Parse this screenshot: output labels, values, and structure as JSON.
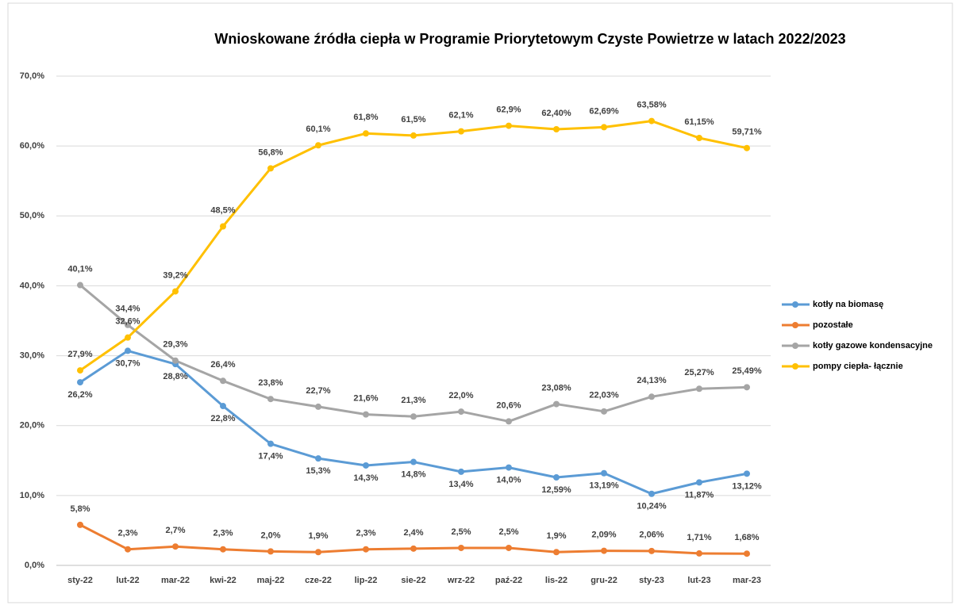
{
  "chart_data": {
    "type": "line",
    "title": "Wnioskowane źródła ciepła w Programie Priorytetowym Czyste Powietrze w latach 2022/2023",
    "categories": [
      "sty-22",
      "lut-22",
      "mar-22",
      "kwi-22",
      "maj-22",
      "cze-22",
      "lip-22",
      "sie-22",
      "wrz-22",
      "paź-22",
      "lis-22",
      "gru-22",
      "sty-23",
      "lut-23",
      "mar-23"
    ],
    "series": [
      {
        "name": "kotły na biomasę",
        "color": "#5b9bd5",
        "values": [
          26.2,
          30.7,
          28.8,
          22.8,
          17.4,
          15.3,
          14.3,
          14.8,
          13.4,
          14.0,
          12.59,
          13.19,
          10.24,
          11.87,
          13.12
        ],
        "value_labels": [
          "26,2%",
          "30,7%",
          "28,8%",
          "22,8%",
          "17,4%",
          "15,3%",
          "14,3%",
          "14,8%",
          "13,4%",
          "14,0%",
          "12,59%",
          "13,19%",
          "10,24%",
          "11,87%",
          "13,12%"
        ]
      },
      {
        "name": "pozostałe",
        "color": "#ed7d31",
        "values": [
          5.8,
          2.3,
          2.7,
          2.3,
          2.0,
          1.9,
          2.3,
          2.4,
          2.5,
          2.5,
          1.9,
          2.09,
          2.06,
          1.71,
          1.68
        ],
        "value_labels": [
          "5,8%",
          "2,3%",
          "2,7%",
          "2,3%",
          "2,0%",
          "1,9%",
          "2,3%",
          "2,4%",
          "2,5%",
          "2,5%",
          "1,9%",
          "2,09%",
          "2,06%",
          "1,71%",
          "1,68%"
        ]
      },
      {
        "name": "kotły gazowe kondensacyjne",
        "color": "#a5a5a5",
        "values": [
          40.1,
          34.4,
          29.3,
          26.4,
          23.8,
          22.7,
          21.6,
          21.3,
          22.0,
          20.6,
          23.08,
          22.03,
          24.13,
          25.27,
          25.49
        ],
        "value_labels": [
          "40,1%",
          "34,4%",
          "29,3%",
          "26,4%",
          "23,8%",
          "22,7%",
          "21,6%",
          "21,3%",
          "22,0%",
          "20,6%",
          "23,08%",
          "22,03%",
          "24,13%",
          "25,27%",
          "25,49%"
        ]
      },
      {
        "name": "pompy ciepła- łącznie",
        "color": "#ffc000",
        "values": [
          27.9,
          32.6,
          39.2,
          48.5,
          56.8,
          60.1,
          61.8,
          61.5,
          62.1,
          62.9,
          62.4,
          62.69,
          63.58,
          61.15,
          59.71
        ],
        "value_labels": [
          "27,9%",
          "32,6%",
          "39,2%",
          "48,5%",
          "56,8%",
          "60,1%",
          "61,8%",
          "61,5%",
          "62,1%",
          "62,9%",
          "62,40%",
          "62,69%",
          "63,58%",
          "61,15%",
          "59,71%"
        ]
      }
    ],
    "ylim": [
      0,
      70
    ],
    "yticks": [
      {
        "value": 0,
        "label": "0,0%"
      },
      {
        "value": 10,
        "label": "10,0%"
      },
      {
        "value": 20,
        "label": "20,0%"
      },
      {
        "value": 30,
        "label": "30,0%"
      },
      {
        "value": 40,
        "label": "40,0%"
      },
      {
        "value": 50,
        "label": "50,0%"
      },
      {
        "value": 60,
        "label": "60,0%"
      },
      {
        "value": 70,
        "label": "70,0%"
      }
    ],
    "grid": true,
    "legend": "right"
  }
}
